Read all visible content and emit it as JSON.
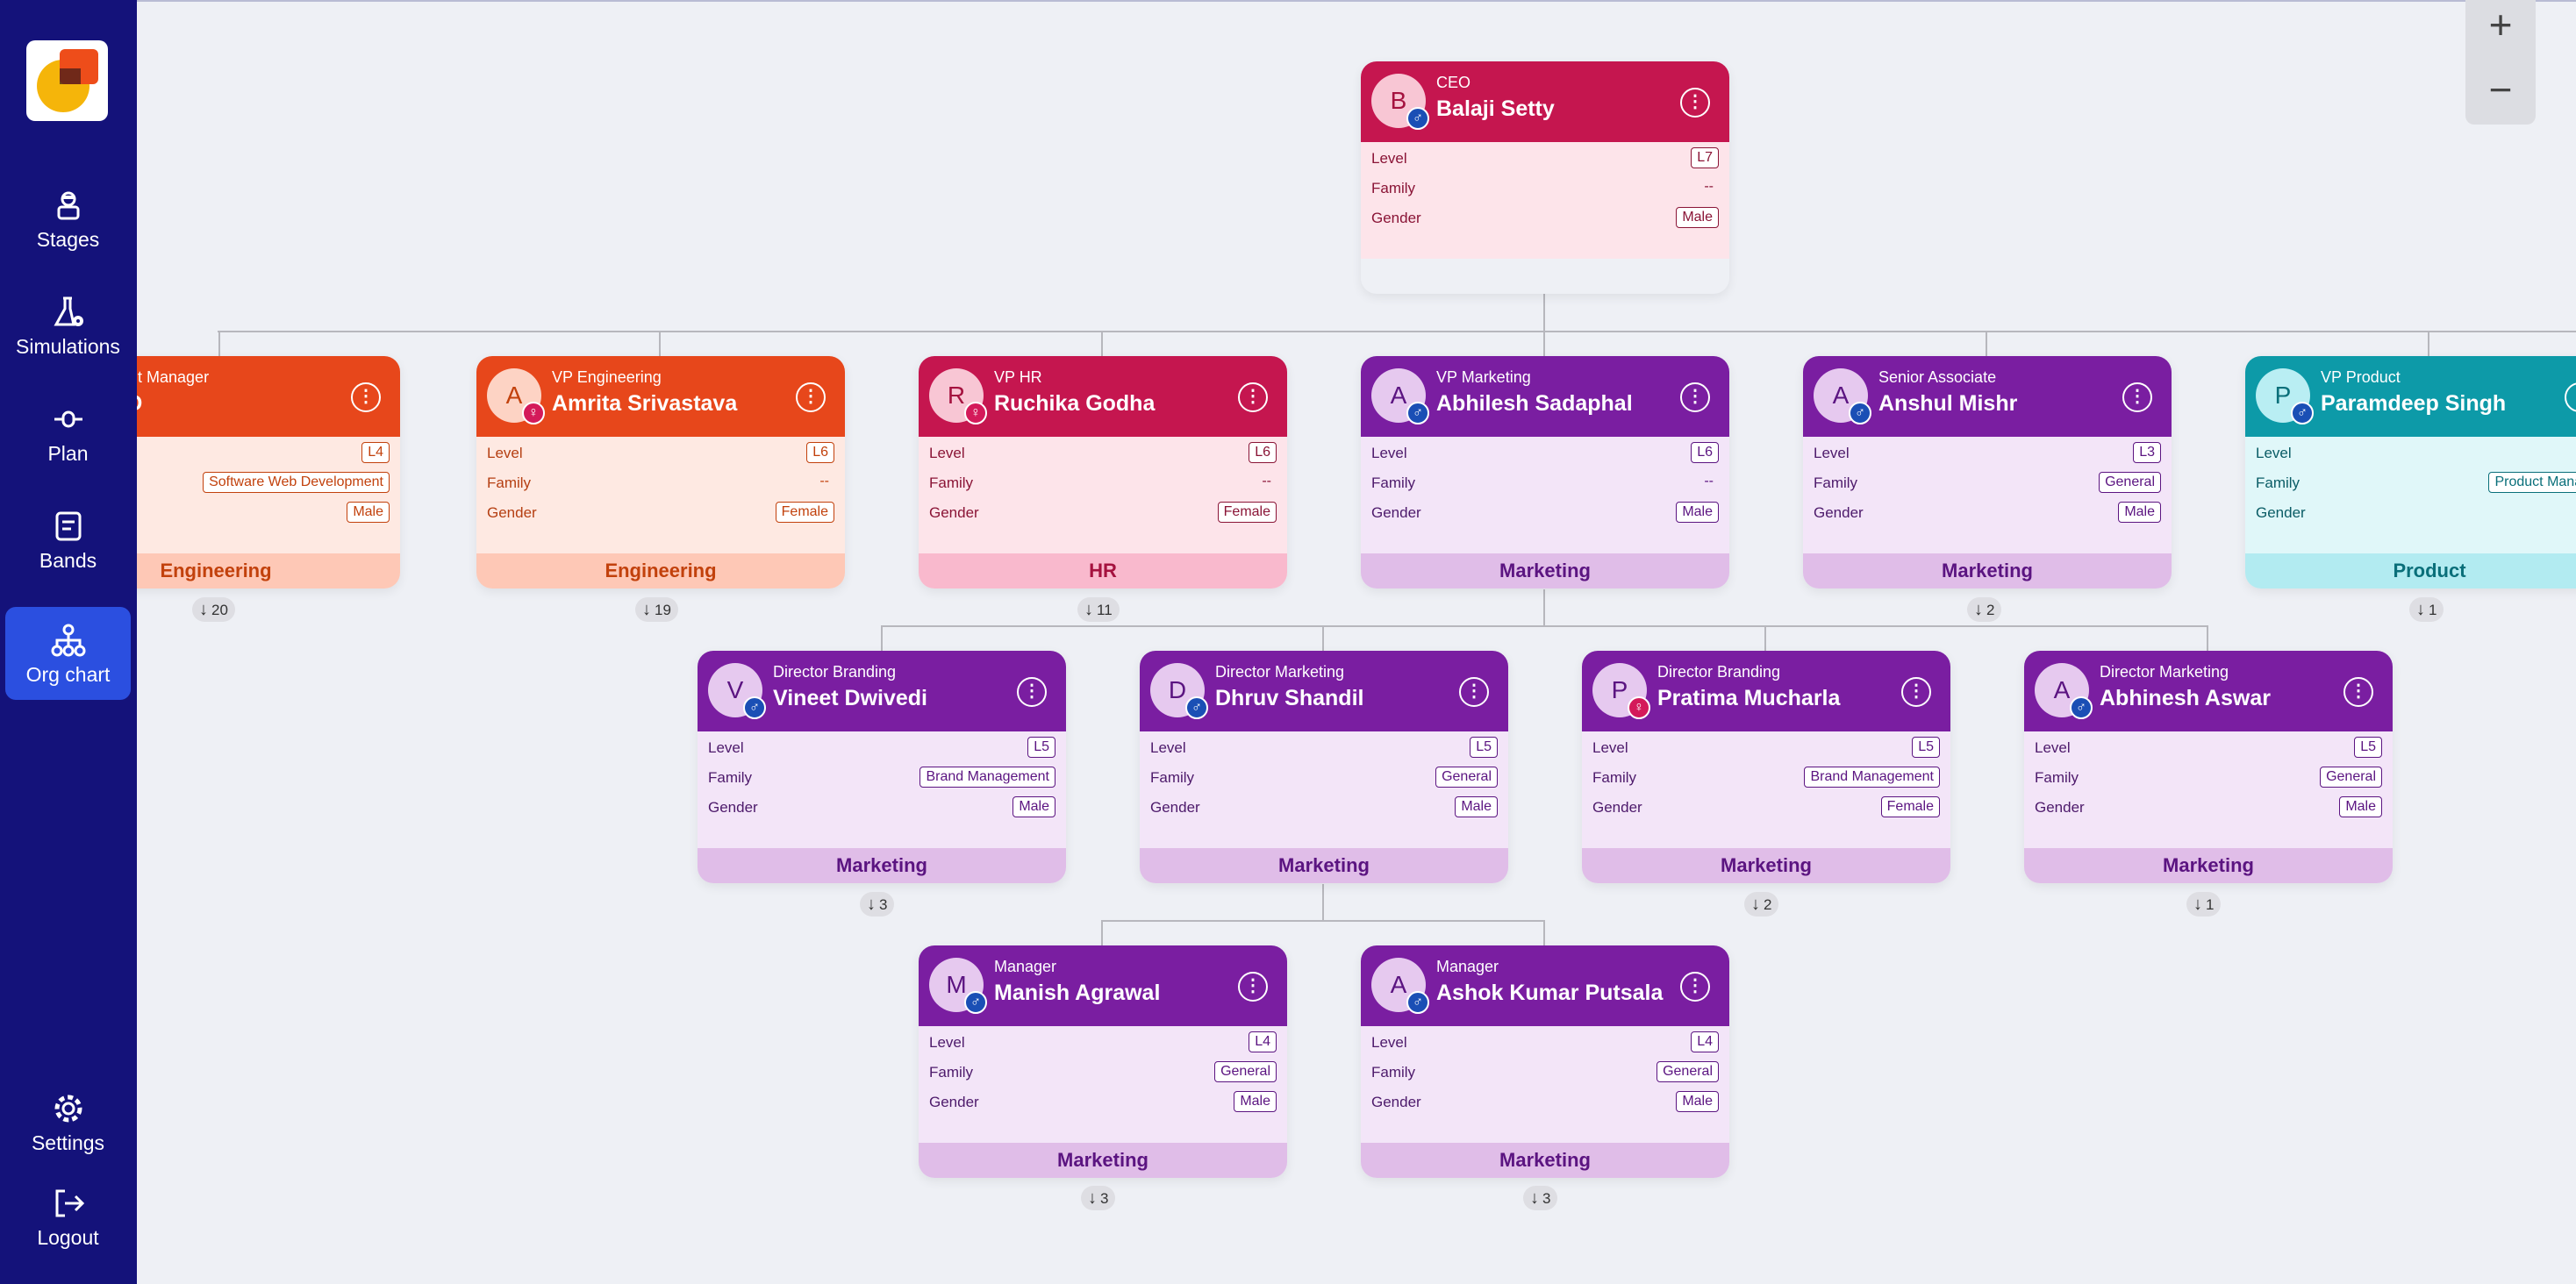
{
  "sidebar": {
    "items": [
      {
        "label": "Stages",
        "icon": "user-badge-icon"
      },
      {
        "label": "Simulations",
        "icon": "flask-gear-icon"
      },
      {
        "label": "Plan",
        "icon": "slider-icon"
      },
      {
        "label": "Bands",
        "icon": "document-list-icon"
      },
      {
        "label": "Org chart",
        "icon": "hierarchy-icon",
        "active": true
      }
    ],
    "settings": "Settings",
    "logout": "Logout"
  },
  "zoom": {
    "in": "+",
    "out": "−"
  },
  "labels": {
    "level": "Level",
    "family": "Family",
    "gender": "Gender"
  },
  "nodes": {
    "ceo": {
      "initial": "B",
      "title": "CEO",
      "name": "Balaji Setty",
      "level": "L7",
      "family": "--",
      "gender": "Male"
    },
    "eng_mgr": {
      "initial": "",
      "title": "ment Manager",
      "name": "g D",
      "level": "L4",
      "family": "Software Web Development",
      "gender": "Male",
      "dept": "Engineering",
      "count": "20"
    },
    "vp_eng": {
      "initial": "A",
      "title": "VP Engineering",
      "name": "Amrita Srivastava",
      "level": "L6",
      "family": "--",
      "gender": "Female",
      "dept": "Engineering",
      "count": "19"
    },
    "vp_hr": {
      "initial": "R",
      "title": "VP HR",
      "name": "Ruchika Godha",
      "level": "L6",
      "family": "--",
      "gender": "Female",
      "dept": "HR",
      "count": "11"
    },
    "vp_mkt": {
      "initial": "A",
      "title": "VP Marketing",
      "name": "Abhilesh Sadaphal",
      "level": "L6",
      "family": "--",
      "gender": "Male",
      "dept": "Marketing"
    },
    "sr_assoc": {
      "initial": "A",
      "title": "Senior Associate",
      "name": "Anshul Mishr",
      "level": "L3",
      "family": "General",
      "gender": "Male",
      "dept": "Marketing",
      "count": "2"
    },
    "vp_prod": {
      "initial": "P",
      "title": "VP Product",
      "name": "Paramdeep Singh",
      "level": "",
      "family": "Product Manag",
      "gender": "",
      "dept": "Product",
      "count": "1"
    },
    "dir_vineet": {
      "initial": "V",
      "title": "Director Branding",
      "name": "Vineet Dwivedi",
      "level": "L5",
      "family": "Brand Management",
      "gender": "Male",
      "dept": "Marketing",
      "count": "3"
    },
    "dir_dhruv": {
      "initial": "D",
      "title": "Director Marketing",
      "name": "Dhruv Shandil",
      "level": "L5",
      "family": "General",
      "gender": "Male",
      "dept": "Marketing"
    },
    "dir_pratima": {
      "initial": "P",
      "title": "Director Branding",
      "name": "Pratima Mucharla",
      "level": "L5",
      "family": "Brand Management",
      "gender": "Female",
      "dept": "Marketing",
      "count": "2"
    },
    "dir_abhinesh": {
      "initial": "A",
      "title": "Director Marketing",
      "name": "Abhinesh Aswar",
      "level": "L5",
      "family": "General",
      "gender": "Male",
      "dept": "Marketing",
      "count": "1"
    },
    "mgr_manish": {
      "initial": "M",
      "title": "Manager",
      "name": "Manish Agrawal",
      "level": "L4",
      "family": "General",
      "gender": "Male",
      "dept": "Marketing",
      "count": "3"
    },
    "mgr_ashok": {
      "initial": "A",
      "title": "Manager",
      "name": "Ashok Kumar Putsala",
      "level": "L4",
      "family": "General",
      "gender": "Male",
      "dept": "Marketing",
      "count": "3"
    }
  }
}
